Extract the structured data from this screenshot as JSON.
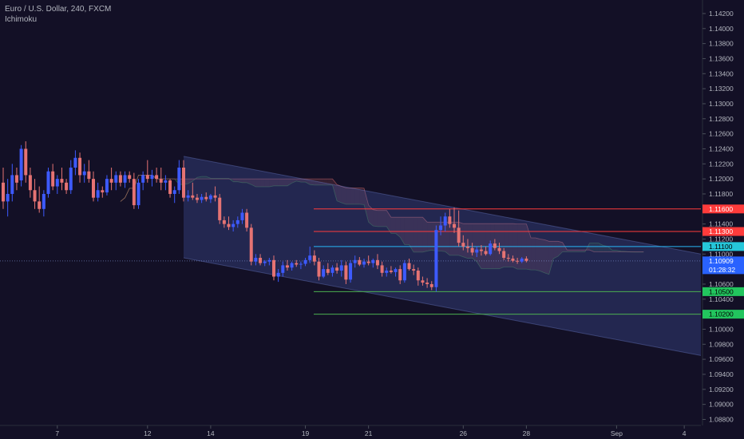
{
  "header": {
    "symbol_line": "Euro / U.S. Dollar, 240, FXCM",
    "indicator_line": "Ichimoku"
  },
  "colors": {
    "background": "#131026",
    "bull": "#3d5afe",
    "bear": "#e57373",
    "resistance": "#ff3b3b",
    "pivot": "#29b6f6",
    "support": "#4caf50",
    "channel": "#3f4e8c",
    "axis_text": "#b2b5be"
  },
  "chart_data": {
    "type": "candlestick",
    "title": "Euro / U.S. Dollar, 240, FXCM",
    "indicator": "Ichimoku",
    "x_ticks": [
      "7",
      "12",
      "14",
      "19",
      "21",
      "26",
      "28",
      "Sep",
      "4"
    ],
    "y_range": [
      1.0872,
      1.1438
    ],
    "y_ticks": [
      "1.14200",
      "1.14000",
      "1.13800",
      "1.13600",
      "1.13400",
      "1.13200",
      "1.13000",
      "1.12800",
      "1.12600",
      "1.12400",
      "1.12200",
      "1.12000",
      "1.11800",
      "1.11600",
      "1.11400",
      "1.11200",
      "1.11000",
      "1.10800",
      "1.10600",
      "1.10400",
      "1.10200",
      "1.10000",
      "1.09800",
      "1.09600",
      "1.09400",
      "1.09200",
      "1.09000",
      "1.08800"
    ],
    "horizontal_levels": [
      {
        "role": "resistance",
        "value": 1.116,
        "label": "1.11600"
      },
      {
        "role": "resistance",
        "value": 1.113,
        "label": "1.11300"
      },
      {
        "role": "pivot",
        "value": 1.111,
        "label": "1.11100"
      },
      {
        "role": "support",
        "value": 1.105,
        "label": "1.10500"
      },
      {
        "role": "support",
        "value": 1.102,
        "label": "1.10200"
      }
    ],
    "current_price": {
      "value": 1.10909,
      "label": "1.10909",
      "countdown": "01:28:32"
    },
    "channel": {
      "start_index": 40,
      "upper": [
        1.123,
        1.11
      ],
      "lower": [
        1.1095,
        1.0965
      ]
    },
    "candles": [
      {
        "o": 1.1195,
        "h": 1.1215,
        "l": 1.116,
        "c": 1.117
      },
      {
        "o": 1.117,
        "h": 1.12,
        "l": 1.115,
        "c": 1.118
      },
      {
        "o": 1.118,
        "h": 1.122,
        "l": 1.117,
        "c": 1.1205
      },
      {
        "o": 1.1205,
        "h": 1.1215,
        "l": 1.1185,
        "c": 1.1195
      },
      {
        "o": 1.1198,
        "h": 1.1245,
        "l": 1.119,
        "c": 1.124
      },
      {
        "o": 1.124,
        "h": 1.125,
        "l": 1.1195,
        "c": 1.1205
      },
      {
        "o": 1.1205,
        "h": 1.1215,
        "l": 1.1175,
        "c": 1.1185
      },
      {
        "o": 1.1185,
        "h": 1.12,
        "l": 1.116,
        "c": 1.117
      },
      {
        "o": 1.117,
        "h": 1.119,
        "l": 1.1155,
        "c": 1.116
      },
      {
        "o": 1.116,
        "h": 1.1185,
        "l": 1.115,
        "c": 1.118
      },
      {
        "o": 1.118,
        "h": 1.1215,
        "l": 1.1175,
        "c": 1.121
      },
      {
        "o": 1.121,
        "h": 1.122,
        "l": 1.1185,
        "c": 1.119
      },
      {
        "o": 1.119,
        "h": 1.1205,
        "l": 1.118,
        "c": 1.12
      },
      {
        "o": 1.12,
        "h": 1.1215,
        "l": 1.1185,
        "c": 1.1195
      },
      {
        "o": 1.1195,
        "h": 1.12,
        "l": 1.118,
        "c": 1.1185
      },
      {
        "o": 1.1185,
        "h": 1.1225,
        "l": 1.118,
        "c": 1.1215
      },
      {
        "o": 1.1215,
        "h": 1.1238,
        "l": 1.1205,
        "c": 1.1228
      },
      {
        "o": 1.1228,
        "h": 1.1235,
        "l": 1.1195,
        "c": 1.1205
      },
      {
        "o": 1.1205,
        "h": 1.122,
        "l": 1.1195,
        "c": 1.121
      },
      {
        "o": 1.121,
        "h": 1.1225,
        "l": 1.1195,
        "c": 1.12
      },
      {
        "o": 1.12,
        "h": 1.121,
        "l": 1.117,
        "c": 1.1175
      },
      {
        "o": 1.1175,
        "h": 1.1195,
        "l": 1.117,
        "c": 1.1185
      },
      {
        "o": 1.1185,
        "h": 1.119,
        "l": 1.1175,
        "c": 1.1182
      },
      {
        "o": 1.1182,
        "h": 1.1205,
        "l": 1.1178,
        "c": 1.12
      },
      {
        "o": 1.12,
        "h": 1.1215,
        "l": 1.1185,
        "c": 1.1195
      },
      {
        "o": 1.1195,
        "h": 1.121,
        "l": 1.1185,
        "c": 1.1205
      },
      {
        "o": 1.1205,
        "h": 1.121,
        "l": 1.119,
        "c": 1.1195
      },
      {
        "o": 1.1195,
        "h": 1.121,
        "l": 1.1188,
        "c": 1.1205
      },
      {
        "o": 1.1205,
        "h": 1.121,
        "l": 1.1195,
        "c": 1.12
      },
      {
        "o": 1.12,
        "h": 1.1208,
        "l": 1.116,
        "c": 1.1165
      },
      {
        "o": 1.1165,
        "h": 1.12,
        "l": 1.116,
        "c": 1.1195
      },
      {
        "o": 1.1195,
        "h": 1.121,
        "l": 1.1185,
        "c": 1.1205
      },
      {
        "o": 1.1205,
        "h": 1.1225,
        "l": 1.1195,
        "c": 1.12
      },
      {
        "o": 1.12,
        "h": 1.1212,
        "l": 1.119,
        "c": 1.1205
      },
      {
        "o": 1.1205,
        "h": 1.1215,
        "l": 1.1195,
        "c": 1.12
      },
      {
        "o": 1.12,
        "h": 1.1215,
        "l": 1.1185,
        "c": 1.1195
      },
      {
        "o": 1.1195,
        "h": 1.1205,
        "l": 1.1185,
        "c": 1.1198
      },
      {
        "o": 1.1198,
        "h": 1.12,
        "l": 1.1175,
        "c": 1.118
      },
      {
        "o": 1.118,
        "h": 1.119,
        "l": 1.1168,
        "c": 1.1185
      },
      {
        "o": 1.1185,
        "h": 1.1225,
        "l": 1.118,
        "c": 1.1215
      },
      {
        "o": 1.1215,
        "h": 1.1225,
        "l": 1.117,
        "c": 1.1175
      },
      {
        "o": 1.1175,
        "h": 1.1185,
        "l": 1.117,
        "c": 1.1178
      },
      {
        "o": 1.1178,
        "h": 1.1195,
        "l": 1.1172,
        "c": 1.1175
      },
      {
        "o": 1.1175,
        "h": 1.118,
        "l": 1.1168,
        "c": 1.1172
      },
      {
        "o": 1.1172,
        "h": 1.118,
        "l": 1.1168,
        "c": 1.1176
      },
      {
        "o": 1.1176,
        "h": 1.1182,
        "l": 1.117,
        "c": 1.1173
      },
      {
        "o": 1.1173,
        "h": 1.118,
        "l": 1.1168,
        "c": 1.1178
      },
      {
        "o": 1.1178,
        "h": 1.119,
        "l": 1.117,
        "c": 1.1175
      },
      {
        "o": 1.1175,
        "h": 1.118,
        "l": 1.114,
        "c": 1.1145
      },
      {
        "o": 1.1145,
        "h": 1.115,
        "l": 1.1135,
        "c": 1.114
      },
      {
        "o": 1.114,
        "h": 1.115,
        "l": 1.1132,
        "c": 1.1136
      },
      {
        "o": 1.1136,
        "h": 1.1145,
        "l": 1.113,
        "c": 1.114
      },
      {
        "o": 1.114,
        "h": 1.115,
        "l": 1.1135,
        "c": 1.1145
      },
      {
        "o": 1.1145,
        "h": 1.116,
        "l": 1.114,
        "c": 1.1155
      },
      {
        "o": 1.1155,
        "h": 1.116,
        "l": 1.113,
        "c": 1.1135
      },
      {
        "o": 1.1135,
        "h": 1.114,
        "l": 1.1085,
        "c": 1.109
      },
      {
        "o": 1.109,
        "h": 1.11,
        "l": 1.1085,
        "c": 1.1095
      },
      {
        "o": 1.1095,
        "h": 1.11,
        "l": 1.1085,
        "c": 1.1088
      },
      {
        "o": 1.1088,
        "h": 1.1092,
        "l": 1.1084,
        "c": 1.109
      },
      {
        "o": 1.109,
        "h": 1.1095,
        "l": 1.1085,
        "c": 1.1092
      },
      {
        "o": 1.1092,
        "h": 1.1098,
        "l": 1.1065,
        "c": 1.107
      },
      {
        "o": 1.107,
        "h": 1.108,
        "l": 1.1063,
        "c": 1.1075
      },
      {
        "o": 1.1075,
        "h": 1.109,
        "l": 1.107,
        "c": 1.1085
      },
      {
        "o": 1.1085,
        "h": 1.1092,
        "l": 1.1078,
        "c": 1.1082
      },
      {
        "o": 1.1082,
        "h": 1.109,
        "l": 1.1078,
        "c": 1.1088
      },
      {
        "o": 1.1088,
        "h": 1.1092,
        "l": 1.1083,
        "c": 1.1086
      },
      {
        "o": 1.1086,
        "h": 1.109,
        "l": 1.108,
        "c": 1.1087
      },
      {
        "o": 1.1087,
        "h": 1.1095,
        "l": 1.1084,
        "c": 1.1092
      },
      {
        "o": 1.1092,
        "h": 1.111,
        "l": 1.1088,
        "c": 1.1098
      },
      {
        "o": 1.1098,
        "h": 1.1105,
        "l": 1.1085,
        "c": 1.109
      },
      {
        "o": 1.109,
        "h": 1.1095,
        "l": 1.1065,
        "c": 1.107
      },
      {
        "o": 1.107,
        "h": 1.1085,
        "l": 1.1068,
        "c": 1.108
      },
      {
        "o": 1.108,
        "h": 1.1088,
        "l": 1.1072,
        "c": 1.1075
      },
      {
        "o": 1.1075,
        "h": 1.1085,
        "l": 1.107,
        "c": 1.1082
      },
      {
        "o": 1.1082,
        "h": 1.1088,
        "l": 1.1074,
        "c": 1.1078
      },
      {
        "o": 1.1078,
        "h": 1.1092,
        "l": 1.107,
        "c": 1.1085
      },
      {
        "o": 1.1085,
        "h": 1.109,
        "l": 1.106,
        "c": 1.1066
      },
      {
        "o": 1.1066,
        "h": 1.1092,
        "l": 1.1062,
        "c": 1.1088
      },
      {
        "o": 1.1088,
        "h": 1.1098,
        "l": 1.1082,
        "c": 1.1092
      },
      {
        "o": 1.1092,
        "h": 1.1096,
        "l": 1.1084,
        "c": 1.1086
      },
      {
        "o": 1.1086,
        "h": 1.1094,
        "l": 1.1082,
        "c": 1.109
      },
      {
        "o": 1.109,
        "h": 1.1098,
        "l": 1.1085,
        "c": 1.1088
      },
      {
        "o": 1.1088,
        "h": 1.1094,
        "l": 1.1082,
        "c": 1.1092
      },
      {
        "o": 1.1092,
        "h": 1.11,
        "l": 1.108,
        "c": 1.1085
      },
      {
        "o": 1.1085,
        "h": 1.109,
        "l": 1.107,
        "c": 1.1075
      },
      {
        "o": 1.1075,
        "h": 1.1082,
        "l": 1.107,
        "c": 1.1078
      },
      {
        "o": 1.1078,
        "h": 1.1084,
        "l": 1.1074,
        "c": 1.1076
      },
      {
        "o": 1.1076,
        "h": 1.1082,
        "l": 1.107,
        "c": 1.108
      },
      {
        "o": 1.108,
        "h": 1.1085,
        "l": 1.106,
        "c": 1.1065
      },
      {
        "o": 1.1065,
        "h": 1.1092,
        "l": 1.1062,
        "c": 1.1088
      },
      {
        "o": 1.1088,
        "h": 1.1094,
        "l": 1.1078,
        "c": 1.108
      },
      {
        "o": 1.108,
        "h": 1.1086,
        "l": 1.1072,
        "c": 1.1078
      },
      {
        "o": 1.1078,
        "h": 1.1082,
        "l": 1.1058,
        "c": 1.1065
      },
      {
        "o": 1.1065,
        "h": 1.107,
        "l": 1.1058,
        "c": 1.1062
      },
      {
        "o": 1.1062,
        "h": 1.1068,
        "l": 1.1055,
        "c": 1.106
      },
      {
        "o": 1.106,
        "h": 1.1064,
        "l": 1.1052,
        "c": 1.1056
      },
      {
        "o": 1.1056,
        "h": 1.1138,
        "l": 1.105,
        "c": 1.1132
      },
      {
        "o": 1.1132,
        "h": 1.115,
        "l": 1.1125,
        "c": 1.1138
      },
      {
        "o": 1.1138,
        "h": 1.1155,
        "l": 1.113,
        "c": 1.115
      },
      {
        "o": 1.115,
        "h": 1.116,
        "l": 1.1135,
        "c": 1.114
      },
      {
        "o": 1.114,
        "h": 1.1162,
        "l": 1.1128,
        "c": 1.1135
      },
      {
        "o": 1.1135,
        "h": 1.1158,
        "l": 1.111,
        "c": 1.1115
      },
      {
        "o": 1.1115,
        "h": 1.1125,
        "l": 1.1105,
        "c": 1.111
      },
      {
        "o": 1.111,
        "h": 1.112,
        "l": 1.1102,
        "c": 1.1108
      },
      {
        "o": 1.1108,
        "h": 1.1115,
        "l": 1.1098,
        "c": 1.1102
      },
      {
        "o": 1.1102,
        "h": 1.111,
        "l": 1.1096,
        "c": 1.1106
      },
      {
        "o": 1.1106,
        "h": 1.1112,
        "l": 1.1098,
        "c": 1.1104
      },
      {
        "o": 1.1104,
        "h": 1.111,
        "l": 1.1098,
        "c": 1.11
      },
      {
        "o": 1.11,
        "h": 1.1118,
        "l": 1.1098,
        "c": 1.1114
      },
      {
        "o": 1.1114,
        "h": 1.112,
        "l": 1.1105,
        "c": 1.1108
      },
      {
        "o": 1.1108,
        "h": 1.1115,
        "l": 1.11,
        "c": 1.1104
      },
      {
        "o": 1.1104,
        "h": 1.1108,
        "l": 1.1092,
        "c": 1.1095
      },
      {
        "o": 1.1095,
        "h": 1.11,
        "l": 1.109,
        "c": 1.1094
      },
      {
        "o": 1.1094,
        "h": 1.1098,
        "l": 1.1089,
        "c": 1.1091
      },
      {
        "o": 1.1091,
        "h": 1.1095,
        "l": 1.1087,
        "c": 1.109
      },
      {
        "o": 1.109,
        "h": 1.1096,
        "l": 1.1088,
        "c": 1.1094
      },
      {
        "o": 1.1094,
        "h": 1.1097,
        "l": 1.1089,
        "c": 1.1091
      }
    ]
  }
}
